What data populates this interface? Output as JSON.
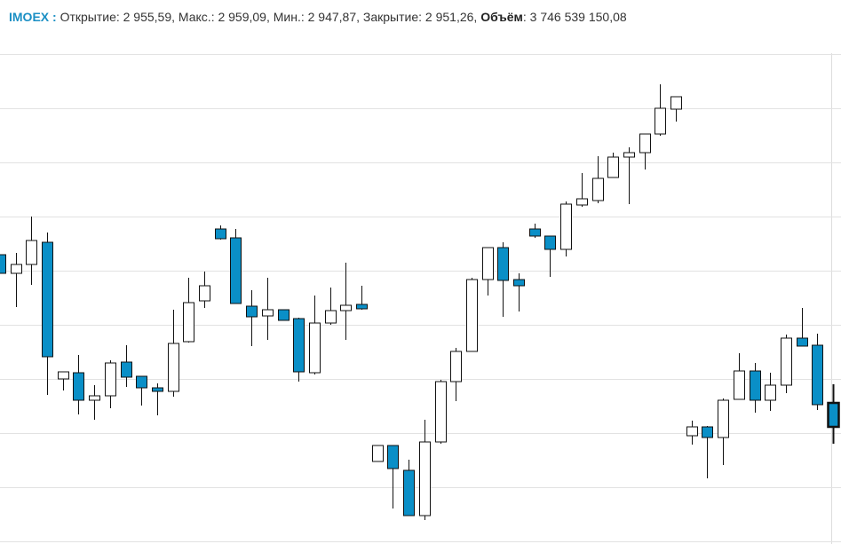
{
  "header": {
    "ticker": "IMOEX :",
    "text": "Открытие: 2 955,59, Макс.: 2 959,09, Мин.: 2 947,87, Закрытие: 2 951,26,",
    "volume_label": "Объём",
    "volume_value": ": 3 746 539 150,08"
  },
  "chart_data": {
    "type": "candlestick",
    "up_color": "#ffffff",
    "down_color": "#0a8fc7",
    "ylim": [
      0,
      610
    ],
    "gridlines": [
      0,
      61,
      122,
      183,
      244,
      305,
      366,
      427,
      488,
      549
    ],
    "grid": true,
    "open": [
      323,
      302,
      312,
      337,
      183,
      190,
      159,
      164,
      202,
      186,
      173,
      169,
      225,
      271,
      352,
      342,
      265,
      254,
      261,
      251,
      190,
      246,
      260,
      267,
      90,
      108,
      80,
      29,
      112,
      180,
      214,
      295,
      331,
      295,
      352,
      344,
      329,
      379,
      384,
      410,
      433,
      438,
      459,
      487,
      119,
      129,
      117,
      160,
      192,
      159,
      176,
      229,
      221,
      156
    ],
    "high": [
      323,
      325,
      366,
      348,
      191,
      210,
      176,
      204,
      221,
      186,
      178,
      261,
      297,
      304,
      356,
      352,
      283,
      297,
      261,
      252,
      277,
      286,
      314,
      288,
      108,
      108,
      92,
      137,
      182,
      218,
      297,
      331,
      337,
      302,
      358,
      344,
      383,
      415,
      434,
      438,
      444,
      459,
      515,
      501,
      136,
      130,
      161,
      212,
      201,
      190,
      233,
      263,
      234,
      177
    ],
    "low": [
      302,
      264,
      289,
      165,
      170,
      143,
      137,
      150,
      174,
      153,
      142,
      163,
      224,
      263,
      340,
      268,
      220,
      227,
      249,
      180,
      188,
      244,
      227,
      261,
      90,
      37,
      29,
      24,
      110,
      158,
      214,
      277,
      253,
      259,
      342,
      298,
      321,
      377,
      381,
      410,
      380,
      419,
      457,
      473,
      109,
      71,
      86,
      160,
      145,
      147,
      167,
      220,
      148,
      110
    ],
    "close": [
      302,
      312,
      339,
      208,
      191,
      159,
      164,
      201,
      185,
      173,
      169,
      223,
      269,
      288,
      341,
      268,
      253,
      261,
      249,
      191,
      246,
      260,
      266,
      262,
      108,
      82,
      29,
      112,
      180,
      214,
      295,
      331,
      294,
      288,
      344,
      329,
      380,
      386,
      409,
      433,
      438,
      459,
      488,
      501,
      129,
      117,
      159,
      192,
      159,
      176,
      229,
      220,
      154,
      129
    ]
  }
}
